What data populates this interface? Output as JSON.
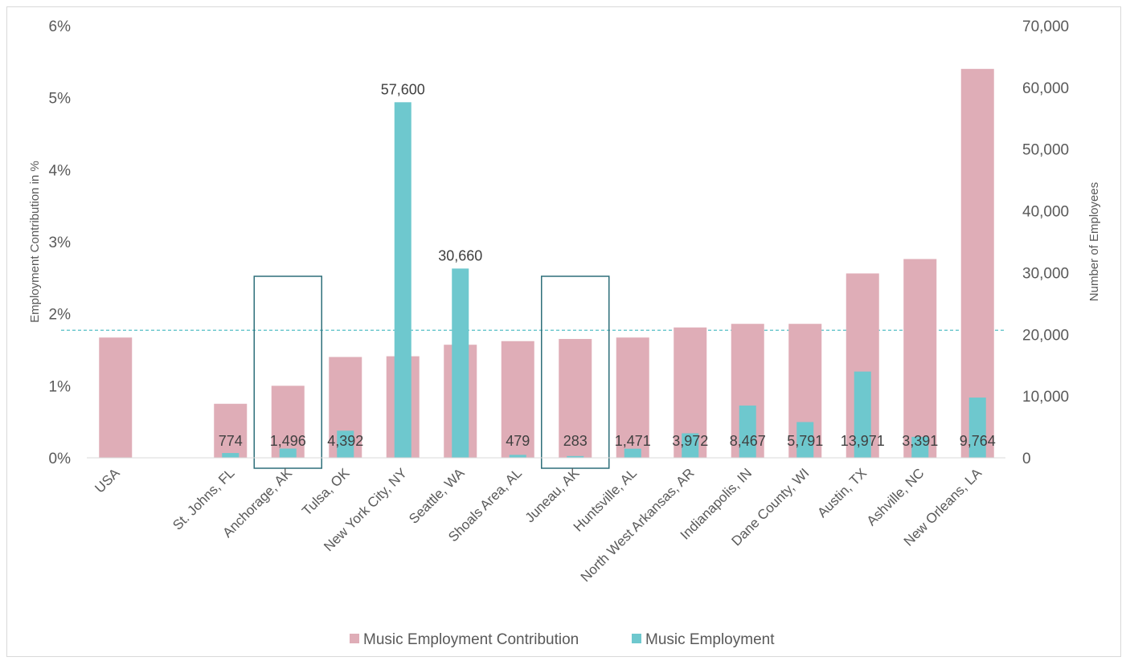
{
  "chart_data": {
    "type": "bar",
    "title": "",
    "categories": [
      "USA",
      "",
      "St. Johns, FL",
      "Anchorage, AK",
      "Tulsa, OK",
      "New York City, NY",
      "Seattle, WA",
      "Shoals Area, AL",
      "Juneau, AK",
      "Huntsville, AL",
      "North West Arkansas, AR",
      "Indianapolis, IN",
      "Dane County, WI",
      "Austin, TX",
      "Ashville, NC",
      "New Orleans, LA"
    ],
    "series": [
      {
        "name": "Music Employment Contribution",
        "axis": "left",
        "color": "#dfadb7",
        "values": [
          1.67,
          null,
          0.75,
          1.0,
          1.4,
          1.41,
          1.57,
          1.62,
          1.65,
          1.67,
          1.81,
          1.86,
          1.86,
          2.56,
          2.76,
          5.4
        ]
      },
      {
        "name": "Music Employment",
        "axis": "right",
        "color": "#6ec8ce",
        "values": [
          null,
          null,
          774,
          1496,
          4392,
          57600,
          30660,
          479,
          283,
          1471,
          3972,
          8467,
          5791,
          13971,
          3391,
          9764
        ],
        "labels": [
          "",
          "",
          "774",
          "1,496",
          "4,392",
          "57,600",
          "30,660",
          "479",
          "283",
          "1,471",
          "3,972",
          "8,467",
          "5,791",
          "13,971",
          "3,391",
          "9,764"
        ]
      }
    ],
    "y_left": {
      "label": "Employment Contribution in %",
      "ylim": [
        0,
        6
      ],
      "ticks": [
        "0%",
        "1%",
        "2%",
        "3%",
        "4%",
        "5%",
        "6%"
      ]
    },
    "y_right": {
      "label": "Number of Employees",
      "ylim": [
        0,
        70000
      ],
      "ticks": [
        "0",
        "10,000",
        "20,000",
        "30,000",
        "40,000",
        "50,000",
        "60,000",
        "70,000"
      ]
    },
    "reference_line": {
      "axis": "left",
      "value": 1.77,
      "color": "#6ec8ce",
      "style": "dashed"
    },
    "highlight_boxes": [
      "Anchorage, AK",
      "Juneau, AK"
    ],
    "highlight_color": "#2e6f7a",
    "grid": false,
    "legend_position": "bottom"
  }
}
